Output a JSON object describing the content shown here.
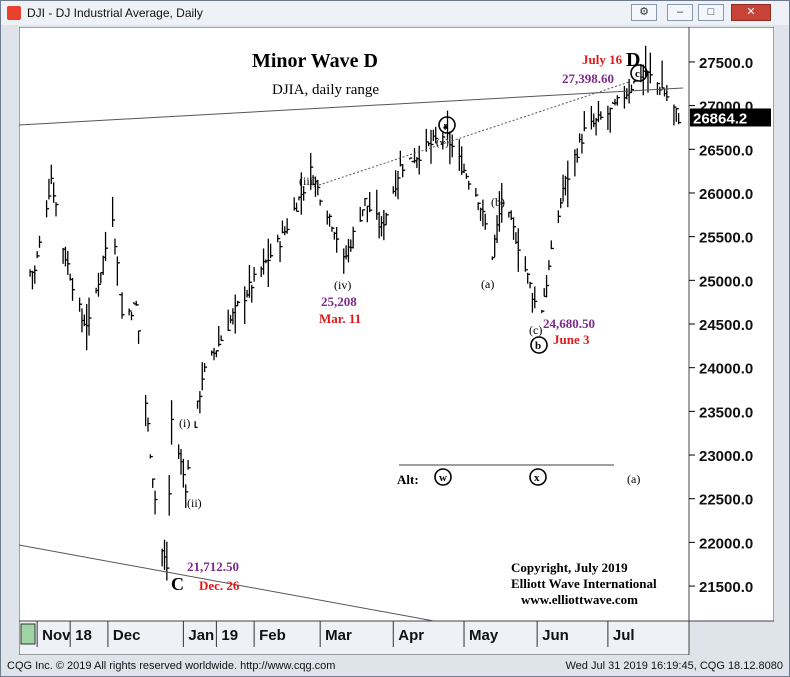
{
  "window": {
    "title": "DJI - DJ Industrial Average, Daily",
    "buttons": {
      "settings": "⚙",
      "minimize": "–",
      "maximize": "□",
      "close": "✕"
    }
  },
  "status": {
    "left": "CQG Inc. © 2019 All rights reserved worldwide. http://www.cqg.com",
    "right": "Wed Jul 31 2019 16:19:45, CQG 18.12.8080"
  },
  "colors": {
    "bar": "#000000",
    "red": "#e01a1a",
    "purple": "#7b2a8c",
    "accent_green": "#9fd4a4"
  },
  "chart_data": {
    "type": "ohlc",
    "title": "Minor Wave D",
    "subtitle": "DJIA, daily range",
    "ylim": [
      21100,
      27900
    ],
    "yticks": [
      "27500.0",
      "27000.0",
      "26500.0",
      "26000.0",
      "25500.0",
      "25000.0",
      "24500.0",
      "24000.0",
      "23500.0",
      "23000.0",
      "22500.0",
      "22000.0",
      "21500.0"
    ],
    "last_price": "26864.2",
    "xlabels": [
      "Nov",
      "18",
      "Dec",
      "Jan",
      "19",
      "Feb",
      "Mar",
      "Apr",
      "May",
      "Jun",
      "Jul"
    ],
    "anchors": [
      {
        "date": "2018-10-31",
        "value": 25100
      },
      {
        "date": "2018-11-07",
        "value": 26180
      },
      {
        "date": "2018-11-12",
        "value": 25380
      },
      {
        "date": "2018-11-20",
        "value": 24550
      },
      {
        "date": "2018-11-23",
        "value": 24500
      },
      {
        "date": "2018-12-03",
        "value": 25750
      },
      {
        "date": "2018-12-07",
        "value": 24600
      },
      {
        "date": "2018-12-13",
        "value": 24700
      },
      {
        "date": "2018-12-21",
        "value": 22500
      },
      {
        "date": "2018-12-24",
        "value": 21900
      },
      {
        "date": "2018-12-26",
        "value": 21712
      },
      {
        "date": "2018-12-28",
        "value": 23400
      },
      {
        "date": "2019-01-03",
        "value": 22650
      },
      {
        "date": "2019-01-10",
        "value": 23900
      },
      {
        "date": "2019-01-25",
        "value": 24700
      },
      {
        "date": "2019-02-13",
        "value": 25500
      },
      {
        "date": "2019-02-25",
        "value": 26240
      },
      {
        "date": "2019-03-07",
        "value": 25600
      },
      {
        "date": "2019-03-11",
        "value": 25208
      },
      {
        "date": "2019-03-20",
        "value": 25900
      },
      {
        "date": "2019-03-27",
        "value": 25600
      },
      {
        "date": "2019-04-04",
        "value": 26300
      },
      {
        "date": "2019-04-12",
        "value": 26450
      },
      {
        "date": "2019-04-23",
        "value": 26680
      },
      {
        "date": "2019-05-07",
        "value": 25950
      },
      {
        "date": "2019-05-13",
        "value": 25300
      },
      {
        "date": "2019-05-17",
        "value": 25900
      },
      {
        "date": "2019-05-23",
        "value": 25500
      },
      {
        "date": "2019-05-31",
        "value": 24750
      },
      {
        "date": "2019-06-03",
        "value": 24680
      },
      {
        "date": "2019-06-12",
        "value": 26050
      },
      {
        "date": "2019-06-21",
        "value": 26700
      },
      {
        "date": "2019-07-03",
        "value": 26950
      },
      {
        "date": "2019-07-16",
        "value": 27398
      },
      {
        "date": "2019-07-24",
        "value": 27200
      },
      {
        "date": "2019-07-31",
        "value": 26864
      }
    ],
    "annotations": [
      {
        "text": "July 16",
        "color": "red"
      },
      {
        "text": "D",
        "color": "black"
      },
      {
        "text": "27,398.60",
        "color": "purple"
      },
      {
        "text": "c",
        "circled": true
      },
      {
        "text": "a",
        "circled": true
      },
      {
        "text": "(v)"
      },
      {
        "text": "(iii)"
      },
      {
        "text": "(iv)"
      },
      {
        "text": "25,208",
        "color": "purple"
      },
      {
        "text": "Mar. 11",
        "color": "red"
      },
      {
        "text": "(b)"
      },
      {
        "text": "(a)"
      },
      {
        "text": "(c)"
      },
      {
        "text": "b",
        "circled": true
      },
      {
        "text": "24,680.50",
        "color": "purple"
      },
      {
        "text": "June 3",
        "color": "red"
      },
      {
        "text": "(i)"
      },
      {
        "text": "(ii)"
      },
      {
        "text": "21,712.50",
        "color": "purple"
      },
      {
        "text": "C"
      },
      {
        "text": "Dec. 26",
        "color": "red"
      },
      {
        "text": "Alt:"
      },
      {
        "text": "w",
        "circled": true
      },
      {
        "text": "x",
        "circled": true
      },
      {
        "text": "(a)"
      }
    ],
    "copyright": [
      "Copyright, July 2019",
      "Elliott Wave International",
      "www.elliottwave.com"
    ]
  }
}
